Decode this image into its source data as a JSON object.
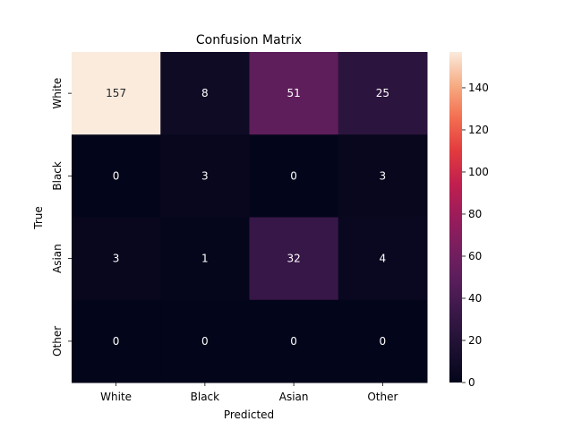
{
  "chart_data": {
    "type": "heatmap",
    "title": "Confusion Matrix",
    "xlabel": "Predicted",
    "ylabel": "True",
    "x_categories": [
      "White",
      "Black",
      "Asian",
      "Other"
    ],
    "y_categories": [
      "White",
      "Black",
      "Asian",
      "Other"
    ],
    "values": [
      [
        157,
        8,
        51,
        25
      ],
      [
        0,
        3,
        0,
        3
      ],
      [
        3,
        1,
        32,
        4
      ],
      [
        0,
        0,
        0,
        0
      ]
    ],
    "colorbar": {
      "range": [
        0,
        157
      ],
      "ticks": [
        0,
        20,
        40,
        60,
        80,
        100,
        120,
        140
      ]
    },
    "colormap": "rocket",
    "grid": false
  }
}
